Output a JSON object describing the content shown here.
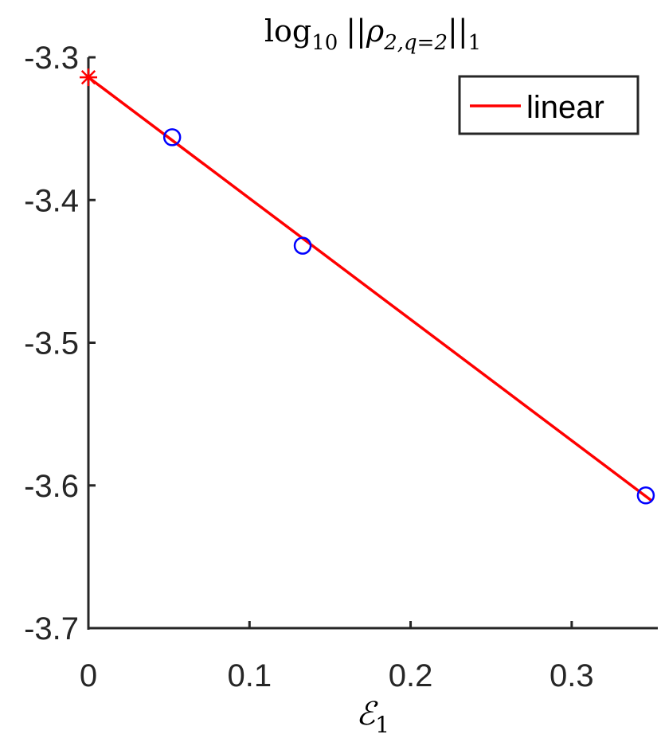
{
  "chart_data": {
    "type": "line",
    "title": {
      "base": "log",
      "base_sub": "10",
      "expr": "||ρ",
      "expr_sub": "2,q=2",
      "close": "||",
      "close_sub": "1"
    },
    "xlabel": {
      "main": "ℰ",
      "sub": "1"
    },
    "ylabel": "",
    "xlim": [
      0,
      0.35
    ],
    "ylim": [
      -3.7,
      -3.3
    ],
    "xticks": [
      0,
      0.1,
      0.2,
      0.3
    ],
    "xtick_labels": [
      "0",
      "0.1",
      "0.2",
      "0.3"
    ],
    "yticks": [
      -3.3,
      -3.4,
      -3.5,
      -3.6,
      -3.7
    ],
    "ytick_labels": [
      "-3.3",
      "-3.4",
      "-3.5",
      "-3.6",
      "-3.7"
    ],
    "grid": false,
    "legend": {
      "position": "top-right",
      "entries": [
        "linear"
      ]
    },
    "series": [
      {
        "name": "linear",
        "kind": "line",
        "color": "#ff0000",
        "x": [
          0,
          0.35
        ],
        "y": [
          -3.314,
          -3.611
        ]
      },
      {
        "kind": "markers",
        "marker": "circle",
        "color": "#0000ff",
        "x": [
          0.052,
          0.133,
          0.346
        ],
        "y": [
          -3.356,
          -3.432,
          -3.607
        ]
      },
      {
        "kind": "markers",
        "marker": "asterisk",
        "color": "#ff0000",
        "x": [
          0
        ],
        "y": [
          -3.314
        ]
      }
    ]
  }
}
